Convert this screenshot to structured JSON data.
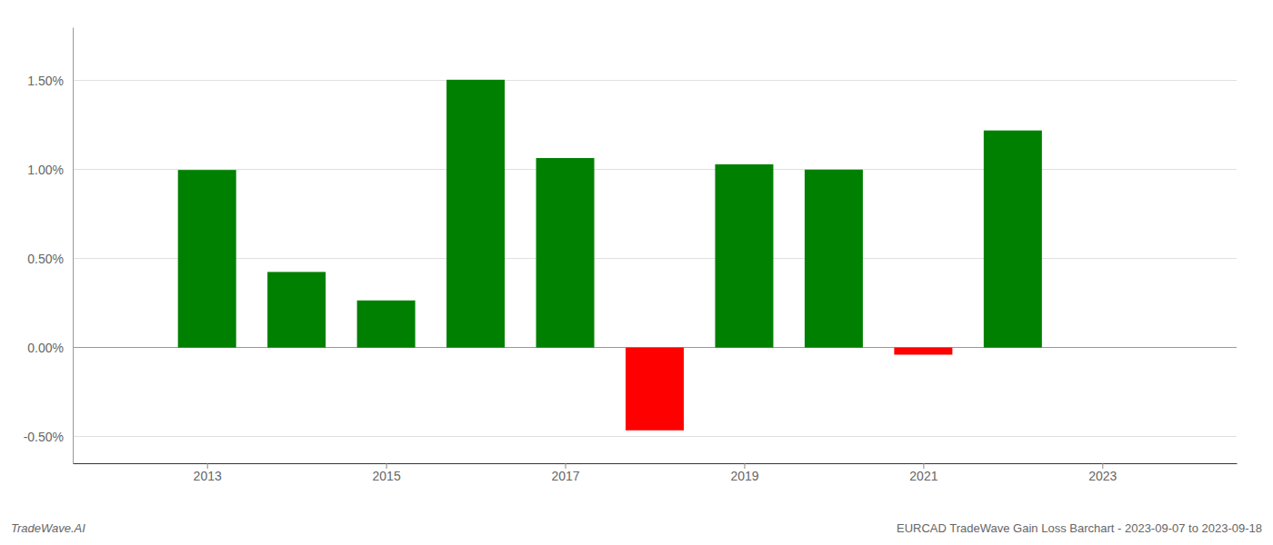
{
  "chart_data": {
    "type": "bar",
    "x": [
      2013,
      2014,
      2015,
      2016,
      2017,
      2018,
      2019,
      2020,
      2021,
      2022
    ],
    "values": [
      0.998,
      0.425,
      0.265,
      1.505,
      1.065,
      -0.465,
      1.03,
      1.0,
      -0.04,
      1.22
    ],
    "colors": [
      "#008000",
      "#008000",
      "#008000",
      "#008000",
      "#008000",
      "#ff0000",
      "#008000",
      "#008000",
      "#ff0000",
      "#008000"
    ],
    "xlim": [
      2011.5,
      2024.5
    ],
    "xticks": [
      2013,
      2015,
      2017,
      2019,
      2021,
      2023
    ],
    "ylim": [
      -0.65,
      1.8
    ],
    "yticks": [
      {
        "value": -0.5,
        "label": "-0.50%"
      },
      {
        "value": 0.0,
        "label": "0.00%"
      },
      {
        "value": 0.5,
        "label": "0.50%"
      },
      {
        "value": 1.0,
        "label": "1.00%"
      },
      {
        "value": 1.5,
        "label": "1.50%"
      }
    ],
    "grid": true,
    "annotations": [
      "TradeWave.AI",
      "EURCAD TradeWave Gain Loss Barchart - 2023-09-07 to 2023-09-18"
    ]
  }
}
